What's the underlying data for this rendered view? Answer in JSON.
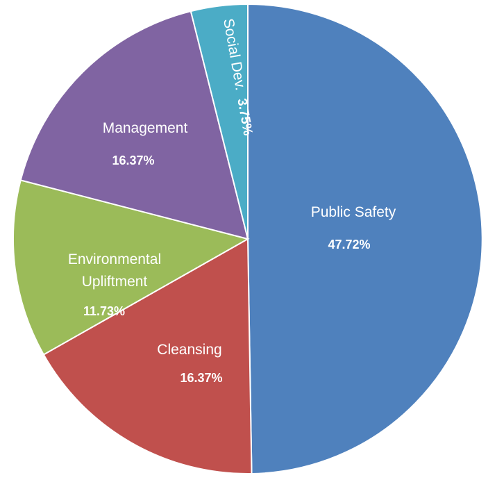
{
  "chart_data": {
    "type": "pie",
    "title": "",
    "slices": [
      {
        "label": "Public Safety",
        "value": 47.72,
        "value_label": "47.72%",
        "color": "#4F81BD"
      },
      {
        "label": "Cleansing",
        "value": 16.37,
        "value_label": "16.37%",
        "color": "#C0504D"
      },
      {
        "label": "Environmental Upliftment",
        "value": 11.73,
        "value_label": "11.73%",
        "color": "#9BBB59"
      },
      {
        "label": "Management",
        "value": 16.37,
        "value_label": "16.37%",
        "color": "#8064A2"
      },
      {
        "label": "Social Dev.",
        "value": 3.75,
        "value_label": "3.75%",
        "color": "#4BACC6"
      }
    ],
    "start": "12 o'clock, clockwise",
    "legend": "none"
  }
}
